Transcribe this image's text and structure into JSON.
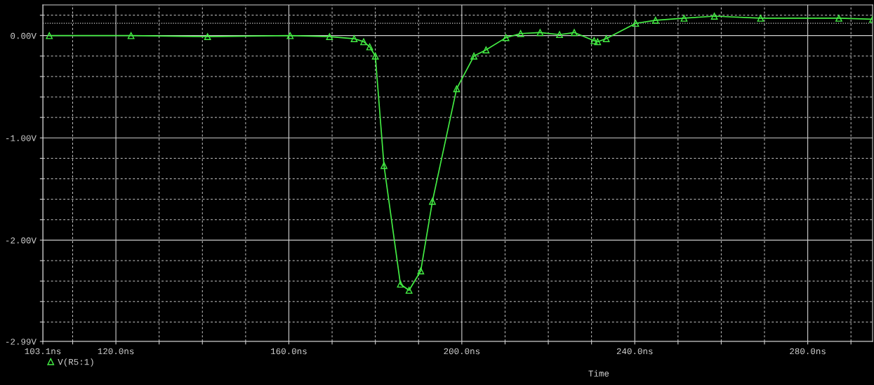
{
  "chart_data": {
    "type": "line",
    "xlabel": "Time",
    "legend": "bottom left",
    "marker": "triangle",
    "line_style": "solid",
    "grid": true,
    "xlim": [
      103.1,
      295
    ],
    "ylim": [
      -2.99,
      0.3
    ],
    "xticks": [
      {
        "value": 103.1,
        "label": "103.1ns"
      },
      {
        "value": 110,
        "label": null
      },
      {
        "value": 120,
        "label": "120.0ns"
      },
      {
        "value": 130,
        "label": null
      },
      {
        "value": 140,
        "label": null
      },
      {
        "value": 150,
        "label": null
      },
      {
        "value": 160,
        "label": "160.0ns"
      },
      {
        "value": 170,
        "label": null
      },
      {
        "value": 180,
        "label": null
      },
      {
        "value": 190,
        "label": null
      },
      {
        "value": 200,
        "label": "200.0ns"
      },
      {
        "value": 210,
        "label": null
      },
      {
        "value": 220,
        "label": null
      },
      {
        "value": 230,
        "label": null
      },
      {
        "value": 240,
        "label": "240.0ns"
      },
      {
        "value": 250,
        "label": null
      },
      {
        "value": 260,
        "label": null
      },
      {
        "value": 270,
        "label": null
      },
      {
        "value": 280,
        "label": "280.0ns"
      },
      {
        "value": 290,
        "label": null
      }
    ],
    "yticks": [
      {
        "value": 0.2,
        "label": null
      },
      {
        "value": 0,
        "label": "0.00V"
      },
      {
        "value": -0.2,
        "label": null
      },
      {
        "value": -0.4,
        "label": null
      },
      {
        "value": -0.6,
        "label": null
      },
      {
        "value": -0.8,
        "label": null
      },
      {
        "value": -1,
        "label": "-1.00V"
      },
      {
        "value": -1.2,
        "label": null
      },
      {
        "value": -1.4,
        "label": null
      },
      {
        "value": -1.6,
        "label": null
      },
      {
        "value": -1.8,
        "label": null
      },
      {
        "value": -2,
        "label": "-2.00V"
      },
      {
        "value": -2.2,
        "label": null
      },
      {
        "value": -2.4,
        "label": null
      },
      {
        "value": -2.6,
        "label": null
      },
      {
        "value": -2.8,
        "label": null
      },
      {
        "value": -2.99,
        "label": "-2.99V"
      }
    ],
    "ref_lines": [
      {
        "axis": "y",
        "value": 0.12,
        "color": "#d0d0d0",
        "line_style": "dotted"
      }
    ],
    "series": [
      {
        "name": "V(R5:1)",
        "color": "#44ee44",
        "x": [
          104.6,
          123.5,
          141.2,
          160.3,
          169.4,
          175.1,
          177.3,
          178.7,
          180.0,
          182.0,
          185.8,
          187.8,
          190.5,
          193.2,
          198.8,
          202.8,
          205.6,
          210.2,
          213.6,
          218.1,
          222.6,
          226.0,
          230.6,
          231.4,
          233.4,
          240.2,
          244.8,
          251.4,
          258.4,
          269.1,
          287.2,
          295.0
        ],
        "values": [
          0.0,
          0.0,
          -0.01,
          0.0,
          -0.01,
          -0.03,
          -0.06,
          -0.11,
          -0.2,
          -1.27,
          -2.43,
          -2.49,
          -2.3,
          -1.62,
          -0.52,
          -0.2,
          -0.14,
          -0.02,
          0.02,
          0.03,
          0.01,
          0.03,
          -0.05,
          -0.06,
          -0.03,
          0.12,
          0.15,
          0.17,
          0.19,
          0.17,
          0.17,
          0.16
        ]
      }
    ]
  }
}
